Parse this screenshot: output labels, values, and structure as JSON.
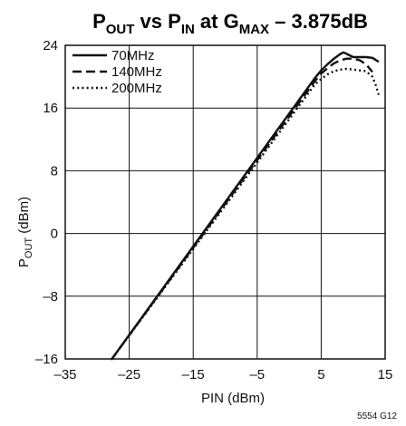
{
  "chart_data": {
    "type": "line",
    "title": {
      "p1": "P",
      "p1_sub": "OUT",
      "p2": " vs P",
      "p2_sub": "IN",
      "p3": " at G",
      "p3_sub": "MAX",
      "p4": " – 3.875dB"
    },
    "xlabel": "PIN (dBm)",
    "ylabel": {
      "main": "P",
      "sub": "OUT",
      "rest": " (dBm)"
    },
    "xlim": [
      -35,
      15
    ],
    "ylim": [
      -16,
      24
    ],
    "xticks": [
      "–35",
      "–25",
      "–15",
      "–5",
      "5",
      "15"
    ],
    "xtick_values": [
      -35,
      -25,
      -15,
      -5,
      5,
      15
    ],
    "yticks": [
      "–16",
      "–8",
      "0",
      "8",
      "16",
      "24"
    ],
    "ytick_values": [
      -16,
      -8,
      0,
      8,
      16,
      24
    ],
    "grid": true,
    "legend_position": "top-left",
    "series": [
      {
        "name": "70MHz",
        "style": "solid",
        "x": [
          -27.8,
          4,
          5,
          6,
          7,
          8,
          8.5,
          9,
          10,
          11,
          12,
          13,
          14
        ],
        "y": [
          -16.1,
          19.8,
          20.8,
          21.6,
          22.3,
          22.9,
          23.1,
          22.9,
          22.5,
          22.5,
          22.5,
          22.4,
          21.9
        ]
      },
      {
        "name": "140MHz",
        "style": "dashed",
        "x": [
          -27.8,
          4,
          5,
          6,
          7,
          8,
          9,
          10,
          11,
          12,
          13
        ],
        "y": [
          -16.1,
          19.4,
          20.4,
          21.1,
          21.7,
          22.1,
          22.3,
          22.3,
          22.1,
          21.6,
          20.6
        ]
      },
      {
        "name": "200MHz",
        "style": "dotted",
        "x": [
          -27.8,
          4,
          5,
          6,
          7,
          8,
          9,
          10,
          11,
          12,
          13,
          13.5,
          14
        ],
        "y": [
          -16.1,
          19.0,
          19.7,
          20.3,
          20.7,
          20.9,
          21.0,
          20.9,
          20.8,
          20.7,
          20.0,
          19.0,
          17.7
        ]
      }
    ],
    "figure_id": "5554 G12"
  }
}
